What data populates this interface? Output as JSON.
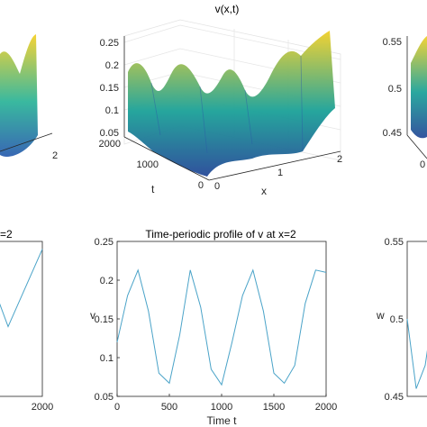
{
  "colors": {
    "line": "#4aa3c8",
    "axis": "#262626",
    "grid3d": "#e6e6e6",
    "surface_low": "#2a4c9a",
    "surface_mid": "#1fa39a",
    "surface_high": "#f2d12c"
  },
  "panels_top": {
    "left_partial": {
      "x_ticks": [
        "2"
      ]
    },
    "center": {
      "title": "v(x,t)",
      "z_ticks": [
        "0.05",
        "0.1",
        "0.15",
        "0.2",
        "0.25"
      ],
      "t_ticks": [
        "0",
        "1000",
        "2000"
      ],
      "x_ticks": [
        "0",
        "1",
        "2"
      ],
      "t_label": "t",
      "x_label": "x"
    },
    "right_partial": {
      "z_ticks": [
        "0.45",
        "0.5",
        "0.55"
      ],
      "t_ticks": [
        "0"
      ]
    }
  },
  "panels_bottom": {
    "left_partial": {
      "title_fragment": "=2",
      "x_ticks": [
        "2000"
      ]
    },
    "center": {
      "title": "Time-periodic profile of v at x=2",
      "xlabel": "Time t",
      "ylabel": "v"
    },
    "right_partial": {
      "ylabel": "w"
    }
  },
  "chart_data": [
    {
      "type": "surface",
      "title": "v(x,t)",
      "xlabel": "x",
      "ylabel": "t",
      "xlim": [
        0,
        2
      ],
      "ylim": [
        0,
        2000
      ],
      "zlim": [
        0.05,
        0.25
      ],
      "z_ticks": [
        0.05,
        0.1,
        0.15,
        0.2,
        0.25
      ],
      "x_ticks": [
        0,
        1,
        2
      ],
      "y_ticks": [
        0,
        1000,
        2000
      ],
      "grid": true
    },
    {
      "type": "line",
      "title": "Time-periodic profile of v at x=2",
      "xlabel": "Time t",
      "ylabel": "v",
      "xlim": [
        0,
        2000
      ],
      "ylim": [
        0.05,
        0.25
      ],
      "x_ticks": [
        0,
        500,
        1000,
        1500,
        2000
      ],
      "y_ticks": [
        0.05,
        0.1,
        0.15,
        0.2,
        0.25
      ],
      "x_tick_labels": [
        "0",
        "500",
        "1000",
        "1500",
        "2000"
      ],
      "y_tick_labels": [
        "0.05",
        "0.1",
        "0.15",
        "0.2",
        "0.25"
      ],
      "x": [
        0,
        100,
        200,
        300,
        400,
        500,
        600,
        700,
        800,
        900,
        1000,
        1100,
        1200,
        1300,
        1400,
        1500,
        1600,
        1700,
        1800,
        1900,
        2000
      ],
      "y": [
        0.12,
        0.18,
        0.213,
        0.16,
        0.08,
        0.067,
        0.13,
        0.213,
        0.165,
        0.085,
        0.065,
        0.12,
        0.18,
        0.213,
        0.16,
        0.08,
        0.067,
        0.09,
        0.17,
        0.213,
        0.21
      ],
      "grid": false
    },
    {
      "type": "line",
      "title": "",
      "ylabel": "",
      "xlim": [
        0,
        2000
      ],
      "x_ticks": [
        2000
      ],
      "x_tick_labels": [
        "2000"
      ],
      "x": [
        1700,
        1800,
        1900,
        2000
      ],
      "y": [
        0.2,
        0.14,
        0.19,
        0.24
      ],
      "grid": false
    },
    {
      "type": "line",
      "title": "",
      "ylabel": "w",
      "ylim": [
        0.45,
        0.55
      ],
      "x": [
        0,
        100,
        200,
        300,
        400
      ],
      "y": [
        0.5,
        0.455,
        0.47,
        0.51,
        0.535
      ],
      "grid": false
    }
  ]
}
